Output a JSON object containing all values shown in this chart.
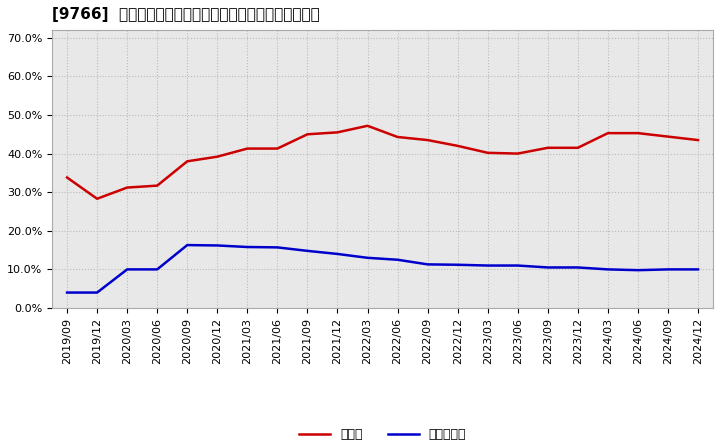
{
  "title": "[9766]  現須金、有利子負債の総資産に対する比率の推移",
  "x_labels": [
    "2019/09",
    "2019/12",
    "2020/03",
    "2020/06",
    "2020/09",
    "2020/12",
    "2021/03",
    "2021/06",
    "2021/09",
    "2021/12",
    "2022/03",
    "2022/06",
    "2022/09",
    "2022/12",
    "2023/03",
    "2023/06",
    "2023/09",
    "2023/12",
    "2024/03",
    "2024/06",
    "2024/09",
    "2024/12"
  ],
  "cash_ratio": [
    0.338,
    0.283,
    0.312,
    0.317,
    0.38,
    0.392,
    0.413,
    0.413,
    0.45,
    0.455,
    0.472,
    0.443,
    0.435,
    0.42,
    0.402,
    0.4,
    0.415,
    0.415,
    0.453,
    0.453,
    0.444,
    0.435
  ],
  "debt_ratio": [
    0.04,
    0.04,
    0.1,
    0.1,
    0.163,
    0.162,
    0.158,
    0.157,
    0.148,
    0.14,
    0.13,
    0.125,
    0.113,
    0.112,
    0.11,
    0.11,
    0.105,
    0.105,
    0.1,
    0.098,
    0.1,
    0.1
  ],
  "cash_color": "#cc0000",
  "debt_color": "#0000cc",
  "background_color": "#ffffff",
  "plot_bg_color": "#e8e8e8",
  "grid_color": "#bbbbbb",
  "ylim": [
    0.0,
    0.72
  ],
  "yticks": [
    0.0,
    0.1,
    0.2,
    0.3,
    0.4,
    0.5,
    0.6,
    0.7
  ],
  "legend_cash": "現須金",
  "legend_debt": "有利子負債",
  "title_fontsize": 11,
  "tick_fontsize": 8,
  "legend_fontsize": 9
}
